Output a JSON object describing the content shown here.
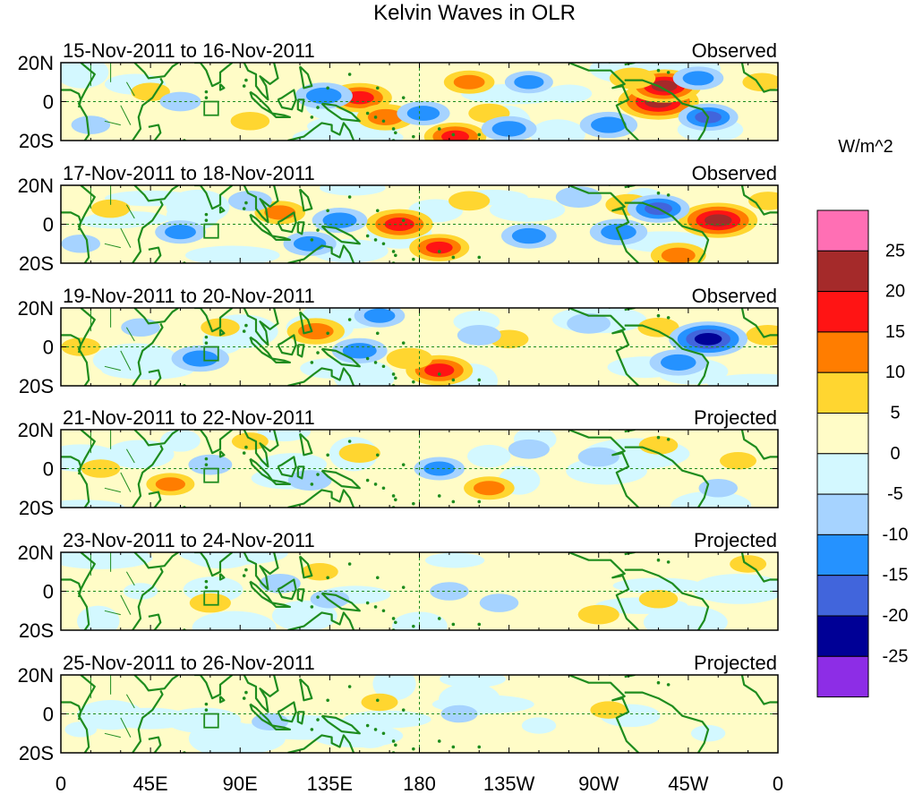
{
  "chart_data": {
    "type": "heatmap",
    "title": "Kelvin Waves in OLR",
    "units_label": "W/m^2",
    "x_ticks": [
      "0",
      "45E",
      "90E",
      "135E",
      "180",
      "135W",
      "90W",
      "45W",
      "0"
    ],
    "lon_ticks_deg": [
      0,
      45,
      90,
      135,
      180,
      225,
      270,
      315,
      360
    ],
    "y_ticks": [
      "20N",
      "0",
      "20S"
    ],
    "lat_ticks_deg": [
      20,
      0,
      -20
    ],
    "lon_range": [
      0,
      360
    ],
    "lat_range": [
      -20,
      20
    ],
    "colorbar": {
      "tick_labels": [
        "25",
        "20",
        "15",
        "10",
        "5",
        "0",
        "-5",
        "-10",
        "-15",
        "-20",
        "-25"
      ],
      "levels": [
        25,
        20,
        15,
        10,
        5,
        0,
        -5,
        -10,
        -15,
        -20,
        -25
      ],
      "colors_top_to_bottom": [
        "#ff6fb4",
        "#a52a2a",
        "#ff1414",
        "#ff7d00",
        "#ffd630",
        "#fffcc7",
        "#d3f8ff",
        "#a6d3ff",
        "#2592ff",
        "#4165dc",
        "#000096",
        "#8d2de6"
      ]
    },
    "panels": [
      {
        "date_range": "15-Nov-2011 to 16-Nov-2011",
        "status": "Observed",
        "anomalies": [
          {
            "lon": 150,
            "lat": 2,
            "value": 17
          },
          {
            "lon": 163,
            "lat": -8,
            "value": 14
          },
          {
            "lon": 205,
            "lat": 10,
            "value": 11
          },
          {
            "lon": 198,
            "lat": -18,
            "value": 16
          },
          {
            "lon": 300,
            "lat": 0,
            "value": 24
          },
          {
            "lon": 303,
            "lat": 8,
            "value": 21
          },
          {
            "lon": 287,
            "lat": 12,
            "value": 9
          },
          {
            "lon": 215,
            "lat": -6,
            "value": 7
          },
          {
            "lon": 45,
            "lat": 5,
            "value": 6
          },
          {
            "lon": 95,
            "lat": -10,
            "value": 6
          },
          {
            "lon": 352,
            "lat": 10,
            "value": 6
          },
          {
            "lon": 132,
            "lat": 3,
            "value": -14
          },
          {
            "lon": 182,
            "lat": -6,
            "value": -12
          },
          {
            "lon": 225,
            "lat": -14,
            "value": -13
          },
          {
            "lon": 275,
            "lat": -12,
            "value": -14
          },
          {
            "lon": 325,
            "lat": -8,
            "value": -15
          },
          {
            "lon": 235,
            "lat": 10,
            "value": -10
          },
          {
            "lon": 320,
            "lat": 12,
            "value": -11
          },
          {
            "lon": 15,
            "lat": -12,
            "value": -6
          },
          {
            "lon": 60,
            "lat": 0,
            "value": -7
          }
        ]
      },
      {
        "date_range": "17-Nov-2011 to 18-Nov-2011",
        "status": "Observed",
        "anomalies": [
          {
            "lon": 170,
            "lat": 0,
            "value": 18
          },
          {
            "lon": 190,
            "lat": -12,
            "value": 15
          },
          {
            "lon": 110,
            "lat": 6,
            "value": 11
          },
          {
            "lon": 330,
            "lat": 2,
            "value": 23
          },
          {
            "lon": 310,
            "lat": -16,
            "value": 13
          },
          {
            "lon": 285,
            "lat": 10,
            "value": 9
          },
          {
            "lon": 205,
            "lat": 12,
            "value": 7
          },
          {
            "lon": 25,
            "lat": 8,
            "value": 6
          },
          {
            "lon": 355,
            "lat": 12,
            "value": 6
          },
          {
            "lon": 140,
            "lat": 2,
            "value": -13
          },
          {
            "lon": 125,
            "lat": -10,
            "value": -12
          },
          {
            "lon": 235,
            "lat": -6,
            "value": -13
          },
          {
            "lon": 280,
            "lat": -4,
            "value": -14
          },
          {
            "lon": 300,
            "lat": 8,
            "value": -16
          },
          {
            "lon": 60,
            "lat": -4,
            "value": -11
          },
          {
            "lon": 95,
            "lat": 12,
            "value": -8
          },
          {
            "lon": 10,
            "lat": -10,
            "value": -6
          },
          {
            "lon": 260,
            "lat": 14,
            "value": -9
          }
        ]
      },
      {
        "date_range": "19-Nov-2011 to 20-Nov-2011",
        "status": "Observed",
        "anomalies": [
          {
            "lon": 190,
            "lat": -12,
            "value": 18
          },
          {
            "lon": 128,
            "lat": 8,
            "value": 14
          },
          {
            "lon": 175,
            "lat": -6,
            "value": 9
          },
          {
            "lon": 225,
            "lat": 4,
            "value": 6
          },
          {
            "lon": 355,
            "lat": 6,
            "value": 8
          },
          {
            "lon": 300,
            "lat": 10,
            "value": 7
          },
          {
            "lon": 10,
            "lat": 0,
            "value": 6
          },
          {
            "lon": 80,
            "lat": 10,
            "value": 6
          },
          {
            "lon": 325,
            "lat": 4,
            "value": -23
          },
          {
            "lon": 310,
            "lat": -8,
            "value": -14
          },
          {
            "lon": 70,
            "lat": -6,
            "value": -14
          },
          {
            "lon": 150,
            "lat": -2,
            "value": -13
          },
          {
            "lon": 160,
            "lat": 16,
            "value": -11
          },
          {
            "lon": 210,
            "lat": 6,
            "value": -8
          },
          {
            "lon": 265,
            "lat": 12,
            "value": -8
          },
          {
            "lon": 40,
            "lat": 10,
            "value": -6
          }
        ]
      },
      {
        "date_range": "21-Nov-2011 to 22-Nov-2011",
        "status": "Projected",
        "anomalies": [
          {
            "lon": 55,
            "lat": -8,
            "value": 10
          },
          {
            "lon": 215,
            "lat": -10,
            "value": 11
          },
          {
            "lon": 150,
            "lat": 8,
            "value": 7
          },
          {
            "lon": 20,
            "lat": 0,
            "value": 6
          },
          {
            "lon": 300,
            "lat": 12,
            "value": 6
          },
          {
            "lon": 340,
            "lat": 4,
            "value": 5
          },
          {
            "lon": 95,
            "lat": 14,
            "value": 5
          },
          {
            "lon": 190,
            "lat": 0,
            "value": -11
          },
          {
            "lon": 75,
            "lat": 2,
            "value": -8
          },
          {
            "lon": 125,
            "lat": -6,
            "value": -8
          },
          {
            "lon": 235,
            "lat": 10,
            "value": -7
          },
          {
            "lon": 270,
            "lat": 6,
            "value": -7
          },
          {
            "lon": 330,
            "lat": -10,
            "value": -6
          }
        ]
      },
      {
        "date_range": "23-Nov-2011 to 24-Nov-2011",
        "status": "Projected",
        "anomalies": [
          {
            "lon": 75,
            "lat": -6,
            "value": 7
          },
          {
            "lon": 270,
            "lat": -12,
            "value": 7
          },
          {
            "lon": 300,
            "lat": -4,
            "value": 6
          },
          {
            "lon": 345,
            "lat": 14,
            "value": 5
          },
          {
            "lon": 130,
            "lat": 10,
            "value": 5
          },
          {
            "lon": 110,
            "lat": 4,
            "value": -7
          },
          {
            "lon": 135,
            "lat": -4,
            "value": -6
          },
          {
            "lon": 195,
            "lat": 0,
            "value": -6
          },
          {
            "lon": 220,
            "lat": -6,
            "value": -6
          },
          {
            "lon": 40,
            "lat": 0,
            "value": -4
          }
        ]
      },
      {
        "date_range": "25-Nov-2011 to 26-Nov-2011",
        "status": "Projected",
        "anomalies": [
          {
            "lon": 160,
            "lat": 6,
            "value": 5
          },
          {
            "lon": 275,
            "lat": 2,
            "value": 5
          },
          {
            "lon": 345,
            "lat": 0,
            "value": 4
          },
          {
            "lon": 40,
            "lat": 10,
            "value": 3
          },
          {
            "lon": 105,
            "lat": -4,
            "value": -5
          },
          {
            "lon": 200,
            "lat": 0,
            "value": -5
          },
          {
            "lon": 240,
            "lat": -6,
            "value": -4
          },
          {
            "lon": 325,
            "lat": -10,
            "value": -4
          },
          {
            "lon": 10,
            "lat": -8,
            "value": -3
          }
        ]
      }
    ]
  }
}
